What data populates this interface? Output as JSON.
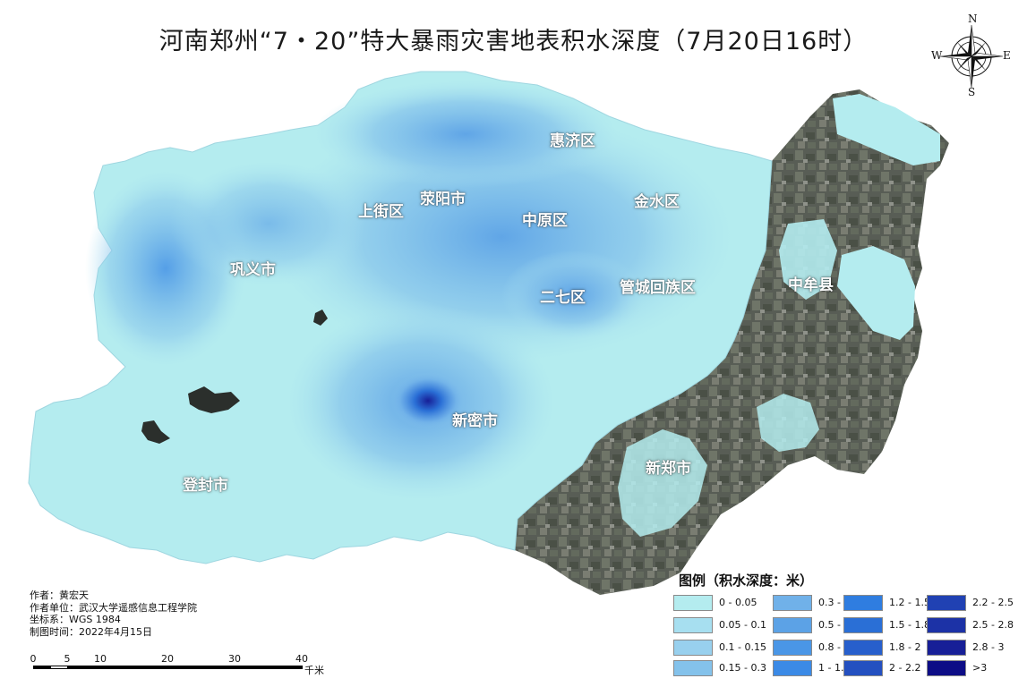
{
  "title": "河南郑州“7・20”特大暴雨灾害地表积水深度（7月20日16时）",
  "place_labels": [
    {
      "id": "huiji",
      "text": "惠济区"
    },
    {
      "id": "shangjie",
      "text": "上街区"
    },
    {
      "id": "xingyang",
      "text": "荥阳市"
    },
    {
      "id": "jinshui",
      "text": "金水区"
    },
    {
      "id": "zhongyuan",
      "text": "中原区"
    },
    {
      "id": "gongyi",
      "text": "巩义市"
    },
    {
      "id": "erqi",
      "text": "二七区"
    },
    {
      "id": "guancheng",
      "text": "管城回族区"
    },
    {
      "id": "zhongmou",
      "text": "中牟县"
    },
    {
      "id": "xinmi",
      "text": "新密市"
    },
    {
      "id": "xinzheng",
      "text": "新郑市"
    },
    {
      "id": "dengfeng",
      "text": "登封市"
    }
  ],
  "credits": {
    "author": "作者：黄宏天",
    "unit": "作者单位：武汉大学遥感信息工程学院",
    "crs": "坐标系：WGS 1984",
    "date": "制图时间：2022年4月15日"
  },
  "scalebar": {
    "ticks": [
      "0",
      "5",
      "10",
      "20",
      "30",
      "40"
    ],
    "unit": "千米"
  },
  "compass": {
    "n": "N",
    "s": "S",
    "e": "E",
    "w": "W"
  },
  "legend": {
    "title": "图例（积水深度：米）",
    "items": [
      {
        "label": "0 - 0.05",
        "color": "#b4ecef"
      },
      {
        "label": "0.05 - 0.1",
        "color": "#a7dff0"
      },
      {
        "label": "0.1 - 0.15",
        "color": "#98d0ee"
      },
      {
        "label": "0.15 - 0.3",
        "color": "#84c2eb"
      },
      {
        "label": "0.3 - 0.5",
        "color": "#70b1e9"
      },
      {
        "label": "0.5 - 0.8",
        "color": "#5ca2e6"
      },
      {
        "label": "0.8 - 1",
        "color": "#4a96e6"
      },
      {
        "label": "1 - 1.2",
        "color": "#3b8ae6"
      },
      {
        "label": "1.2 - 1.5",
        "color": "#2f7de0"
      },
      {
        "label": "1.5 - 1.8",
        "color": "#2a6fd6"
      },
      {
        "label": "1.8 - 2",
        "color": "#275fcc"
      },
      {
        "label": "2 - 2.2",
        "color": "#2450c0"
      },
      {
        "label": "2.2 - 2.5",
        "color": "#2041b3"
      },
      {
        "label": "2.5 - 2.8",
        "color": "#1c32a6"
      },
      {
        "label": "2.8 - 3",
        "color": "#171f97"
      },
      {
        "label": ">3",
        "color": "#0d0d86"
      }
    ]
  },
  "colors": {
    "satellite_dark": "#4b5049",
    "satellite_mid": "#6e746a",
    "water_light": "#b4ecef"
  }
}
